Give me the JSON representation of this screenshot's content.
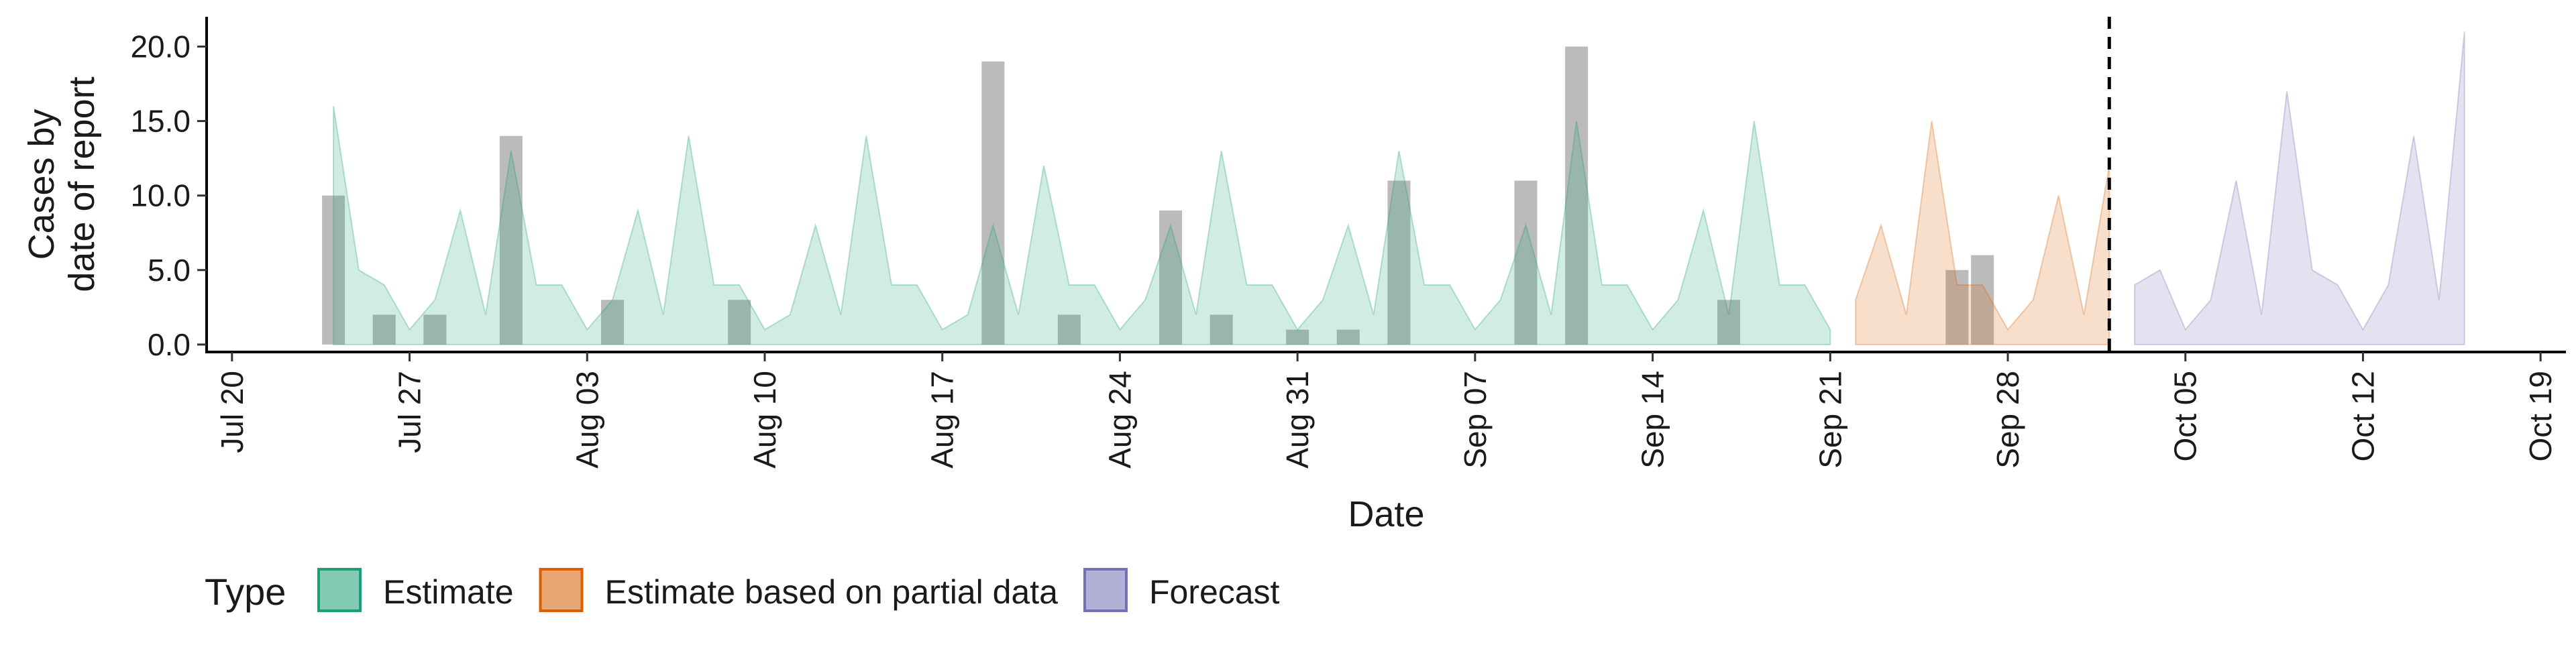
{
  "chart_data": {
    "type": "area",
    "title": "",
    "xlabel": "Date",
    "ylabel": [
      "Cases by",
      "date of report"
    ],
    "x_axis": {
      "type": "date",
      "range": [
        "2020-07-19",
        "2020-10-20"
      ],
      "ticks": [
        {
          "date": "2020-07-20",
          "label": "Jul 20"
        },
        {
          "date": "2020-07-27",
          "label": "Jul 27"
        },
        {
          "date": "2020-08-03",
          "label": "Aug 03"
        },
        {
          "date": "2020-08-10",
          "label": "Aug 10"
        },
        {
          "date": "2020-08-17",
          "label": "Aug 17"
        },
        {
          "date": "2020-08-24",
          "label": "Aug 24"
        },
        {
          "date": "2020-08-31",
          "label": "Aug 31"
        },
        {
          "date": "2020-09-07",
          "label": "Sep 07"
        },
        {
          "date": "2020-09-14",
          "label": "Sep 14"
        },
        {
          "date": "2020-09-21",
          "label": "Sep 21"
        },
        {
          "date": "2020-09-28",
          "label": "Sep 28"
        },
        {
          "date": "2020-10-05",
          "label": "Oct 05"
        },
        {
          "date": "2020-10-12",
          "label": "Oct 12"
        },
        {
          "date": "2020-10-19",
          "label": "Oct 19"
        }
      ]
    },
    "y_axis": {
      "range": [
        -0.5,
        22
      ],
      "ticks": [
        {
          "value": 0,
          "label": "0.0"
        },
        {
          "value": 5,
          "label": "5.0"
        },
        {
          "value": 10,
          "label": "10.0"
        },
        {
          "value": 15,
          "label": "15.0"
        },
        {
          "value": 20,
          "label": "20.0"
        }
      ]
    },
    "grid": false,
    "legend": {
      "position": "bottom-left",
      "title": "Type"
    },
    "vline": {
      "date": "2020-10-02",
      "style": "dashed"
    },
    "series": [
      {
        "name": "Estimate",
        "color": "#1b9e77",
        "points": [
          [
            "2020-07-24",
            16
          ],
          [
            "2020-07-25",
            5
          ],
          [
            "2020-07-26",
            4
          ],
          [
            "2020-07-27",
            1
          ],
          [
            "2020-07-28",
            3
          ],
          [
            "2020-07-29",
            9
          ],
          [
            "2020-07-30",
            2
          ],
          [
            "2020-07-31",
            13
          ],
          [
            "2020-08-01",
            4
          ],
          [
            "2020-08-02",
            4
          ],
          [
            "2020-08-03",
            1
          ],
          [
            "2020-08-04",
            3
          ],
          [
            "2020-08-05",
            9
          ],
          [
            "2020-08-06",
            2
          ],
          [
            "2020-08-07",
            14
          ],
          [
            "2020-08-08",
            4
          ],
          [
            "2020-08-09",
            4
          ],
          [
            "2020-08-10",
            1
          ],
          [
            "2020-08-11",
            2
          ],
          [
            "2020-08-12",
            8
          ],
          [
            "2020-08-13",
            2
          ],
          [
            "2020-08-14",
            14
          ],
          [
            "2020-08-15",
            4
          ],
          [
            "2020-08-16",
            4
          ],
          [
            "2020-08-17",
            1
          ],
          [
            "2020-08-18",
            2
          ],
          [
            "2020-08-19",
            8
          ],
          [
            "2020-08-20",
            2
          ],
          [
            "2020-08-21",
            12
          ],
          [
            "2020-08-22",
            4
          ],
          [
            "2020-08-23",
            4
          ],
          [
            "2020-08-24",
            1
          ],
          [
            "2020-08-25",
            3
          ],
          [
            "2020-08-26",
            8
          ],
          [
            "2020-08-27",
            2
          ],
          [
            "2020-08-28",
            13
          ],
          [
            "2020-08-29",
            4
          ],
          [
            "2020-08-30",
            4
          ],
          [
            "2020-08-31",
            1
          ],
          [
            "2020-09-01",
            3
          ],
          [
            "2020-09-02",
            8
          ],
          [
            "2020-09-03",
            2
          ],
          [
            "2020-09-04",
            13
          ],
          [
            "2020-09-05",
            4
          ],
          [
            "2020-09-06",
            4
          ],
          [
            "2020-09-07",
            1
          ],
          [
            "2020-09-08",
            3
          ],
          [
            "2020-09-09",
            8
          ],
          [
            "2020-09-10",
            2
          ],
          [
            "2020-09-11",
            15
          ],
          [
            "2020-09-12",
            4
          ],
          [
            "2020-09-13",
            4
          ],
          [
            "2020-09-14",
            1
          ],
          [
            "2020-09-15",
            3
          ],
          [
            "2020-09-16",
            9
          ],
          [
            "2020-09-17",
            2
          ],
          [
            "2020-09-18",
            15
          ],
          [
            "2020-09-19",
            4
          ],
          [
            "2020-09-20",
            4
          ],
          [
            "2020-09-21",
            1
          ]
        ]
      },
      {
        "name": "Estimate based on partial data",
        "color": "#d95f02",
        "points": [
          [
            "2020-09-22",
            3
          ],
          [
            "2020-09-23",
            8
          ],
          [
            "2020-09-24",
            2
          ],
          [
            "2020-09-25",
            15
          ],
          [
            "2020-09-26",
            4
          ],
          [
            "2020-09-27",
            4
          ],
          [
            "2020-09-28",
            1
          ],
          [
            "2020-09-29",
            3
          ],
          [
            "2020-09-30",
            10
          ],
          [
            "2020-10-01",
            2
          ],
          [
            "2020-10-02",
            12
          ]
        ]
      },
      {
        "name": "Forecast",
        "color": "#7570b3",
        "points": [
          [
            "2020-10-03",
            4
          ],
          [
            "2020-10-04",
            5
          ],
          [
            "2020-10-05",
            1
          ],
          [
            "2020-10-06",
            3
          ],
          [
            "2020-10-07",
            11
          ],
          [
            "2020-10-08",
            2
          ],
          [
            "2020-10-09",
            17
          ],
          [
            "2020-10-10",
            5
          ],
          [
            "2020-10-11",
            4
          ],
          [
            "2020-10-12",
            1
          ],
          [
            "2020-10-13",
            4
          ],
          [
            "2020-10-14",
            14
          ],
          [
            "2020-10-15",
            3
          ],
          [
            "2020-10-16",
            21
          ]
        ]
      }
    ],
    "reported_cases": {
      "color": "#9e9e9e",
      "bars": [
        [
          "2020-07-24",
          10
        ],
        [
          "2020-07-26",
          2
        ],
        [
          "2020-07-28",
          2
        ],
        [
          "2020-07-31",
          14
        ],
        [
          "2020-08-04",
          3
        ],
        [
          "2020-08-09",
          3
        ],
        [
          "2020-08-19",
          19
        ],
        [
          "2020-08-22",
          2
        ],
        [
          "2020-08-26",
          9
        ],
        [
          "2020-08-28",
          2
        ],
        [
          "2020-08-31",
          1
        ],
        [
          "2020-09-02",
          1
        ],
        [
          "2020-09-04",
          11
        ],
        [
          "2020-09-09",
          11
        ],
        [
          "2020-09-11",
          20
        ],
        [
          "2020-09-17",
          3
        ],
        [
          "2020-09-26",
          5
        ],
        [
          "2020-09-27",
          6
        ]
      ]
    }
  }
}
